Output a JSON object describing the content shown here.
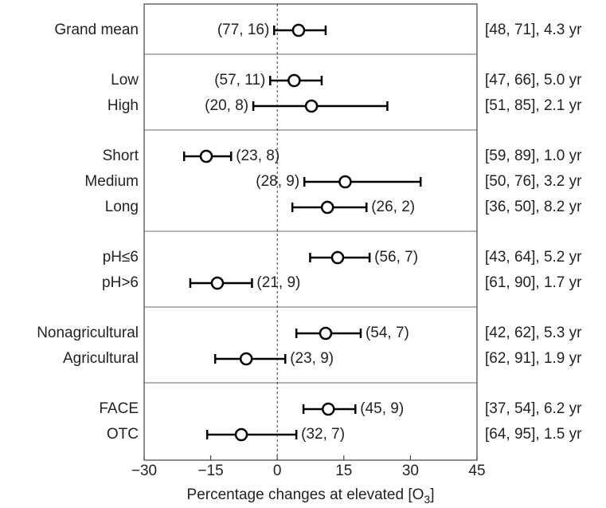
{
  "chart_data": {
    "type": "forest",
    "categories": [
      "Grand mean",
      "Low",
      "High",
      "Short",
      "Medium",
      "Long",
      "pH≤6",
      "pH>6",
      "Nonagricultural",
      "Agricultural",
      "FACE",
      "OTC"
    ],
    "values": [
      4.8,
      3.8,
      7.7,
      -16,
      15.3,
      11.3,
      13.6,
      -13.5,
      10.9,
      -7,
      11.5,
      -8.1
    ],
    "lower": [
      -0.7,
      -1.6,
      -5.4,
      -21,
      6.1,
      3.4,
      7.4,
      -19.6,
      4.3,
      -14,
      5.9,
      -15.8
    ],
    "upper": [
      10.9,
      10,
      24.8,
      -10.4,
      32.3,
      20.1,
      20.8,
      -5.7,
      18.8,
      1.8,
      17.6,
      4.3
    ],
    "value_labels": [
      "(77, 16)",
      "(57, 11)",
      "(20, 8)",
      "(23, 8)",
      "(28, 9)",
      "(26, 2)",
      "(56, 7)",
      "(21, 9)",
      "(54, 7)",
      "(23, 9)",
      "(45, 9)",
      "(32, 7)"
    ],
    "right_labels": [
      "[48, 71], 4.3 yr",
      "[47, 66], 5.0 yr",
      "[51, 85], 2.1 yr",
      "[59, 89], 1.0 yr",
      "[50, 76], 3.2 yr",
      "[36, 50], 8.2 yr",
      "[43, 64], 5.2 yr",
      "[61, 90], 1.7 yr",
      "[42, 62], 5.3 yr",
      "[62, 91], 1.9 yr",
      "[37, 54], 6.2 yr",
      "[64, 95], 1.5 yr"
    ],
    "xlabel": {
      "text": "Percentage changes at elevated [O",
      "sub": "3",
      "end": "]"
    },
    "xlim": [
      -30,
      45
    ],
    "xticks": [
      {
        "value": -30,
        "label": "−30"
      },
      {
        "value": -15,
        "label": "−15"
      },
      0,
      15,
      30,
      45
    ],
    "reference_line": 0,
    "color": "#000000"
  }
}
